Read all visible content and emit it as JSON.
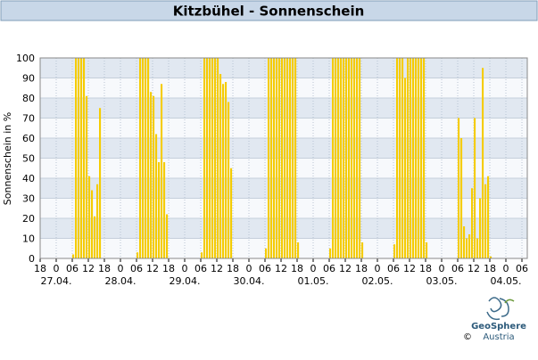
{
  "chart_data": {
    "type": "bar",
    "title": "Kitzbühel - Sonnenschein",
    "ylabel": "Sonnenschein in %",
    "color": "#f5cc00",
    "grid": true,
    "xlim": [
      0,
      182
    ],
    "ylim": [
      0,
      100
    ],
    "yticks": [
      0,
      10,
      20,
      30,
      40,
      50,
      60,
      70,
      80,
      90,
      100
    ],
    "xticks": [
      {
        "value": 0,
        "label": "18"
      },
      {
        "value": 6,
        "label": "0"
      },
      {
        "value": 12,
        "label": "06"
      },
      {
        "value": 18,
        "label": "12"
      },
      {
        "value": 24,
        "label": "18"
      },
      {
        "value": 30,
        "label": "0"
      },
      {
        "value": 36,
        "label": "06"
      },
      {
        "value": 42,
        "label": "12"
      },
      {
        "value": 48,
        "label": "18"
      },
      {
        "value": 54,
        "label": "0"
      },
      {
        "value": 60,
        "label": "06"
      },
      {
        "value": 66,
        "label": "12"
      },
      {
        "value": 72,
        "label": "18"
      },
      {
        "value": 78,
        "label": "0"
      },
      {
        "value": 84,
        "label": "06"
      },
      {
        "value": 90,
        "label": "12"
      },
      {
        "value": 96,
        "label": "18"
      },
      {
        "value": 102,
        "label": "0"
      },
      {
        "value": 108,
        "label": "06"
      },
      {
        "value": 114,
        "label": "12"
      },
      {
        "value": 120,
        "label": "18"
      },
      {
        "value": 126,
        "label": "0"
      },
      {
        "value": 132,
        "label": "06"
      },
      {
        "value": 138,
        "label": "12"
      },
      {
        "value": 144,
        "label": "18"
      },
      {
        "value": 150,
        "label": "0"
      },
      {
        "value": 156,
        "label": "06"
      },
      {
        "value": 162,
        "label": "12"
      },
      {
        "value": 168,
        "label": "18"
      },
      {
        "value": 174,
        "label": "0"
      },
      {
        "value": 180,
        "label": "06"
      }
    ],
    "date_labels": [
      {
        "value": 6,
        "label": "27.04."
      },
      {
        "value": 30,
        "label": "28.04."
      },
      {
        "value": 54,
        "label": "29.04."
      },
      {
        "value": 78,
        "label": "30.04."
      },
      {
        "value": 102,
        "label": "01.05."
      },
      {
        "value": 126,
        "label": "02.05."
      },
      {
        "value": 150,
        "label": "03.05."
      },
      {
        "value": 174,
        "label": "04.05."
      }
    ],
    "x": [
      12,
      13,
      14,
      15,
      16,
      17,
      18,
      19,
      20,
      21,
      22,
      36,
      37,
      38,
      39,
      40,
      41,
      42,
      43,
      44,
      45,
      46,
      47,
      60,
      61,
      62,
      63,
      64,
      65,
      66,
      67,
      68,
      69,
      70,
      71,
      84,
      85,
      86,
      87,
      88,
      89,
      90,
      91,
      92,
      93,
      94,
      95,
      96,
      108,
      109,
      110,
      111,
      112,
      113,
      114,
      115,
      116,
      117,
      118,
      119,
      120,
      132,
      133,
      134,
      135,
      136,
      137,
      138,
      139,
      140,
      141,
      142,
      143,
      144,
      156,
      157,
      158,
      159,
      160,
      161,
      162,
      163,
      164,
      165,
      166,
      167,
      168
    ],
    "values": [
      2,
      100,
      100,
      100,
      100,
      81,
      41,
      34,
      21,
      37,
      75,
      3,
      100,
      100,
      100,
      100,
      83,
      81,
      62,
      48,
      87,
      48,
      22,
      3,
      100,
      100,
      100,
      100,
      100,
      100,
      92,
      87,
      88,
      78,
      45,
      5,
      100,
      100,
      100,
      100,
      100,
      100,
      100,
      100,
      100,
      100,
      100,
      8,
      5,
      100,
      100,
      100,
      100,
      100,
      100,
      100,
      100,
      100,
      100,
      100,
      8,
      7,
      100,
      100,
      100,
      90,
      100,
      100,
      100,
      100,
      100,
      100,
      100,
      8,
      70,
      60,
      16,
      10,
      12,
      35,
      70,
      10,
      30,
      95,
      37,
      41,
      1
    ]
  },
  "logo": {
    "name": "GeoSphere",
    "sub": "Austria",
    "copyright": "©"
  }
}
